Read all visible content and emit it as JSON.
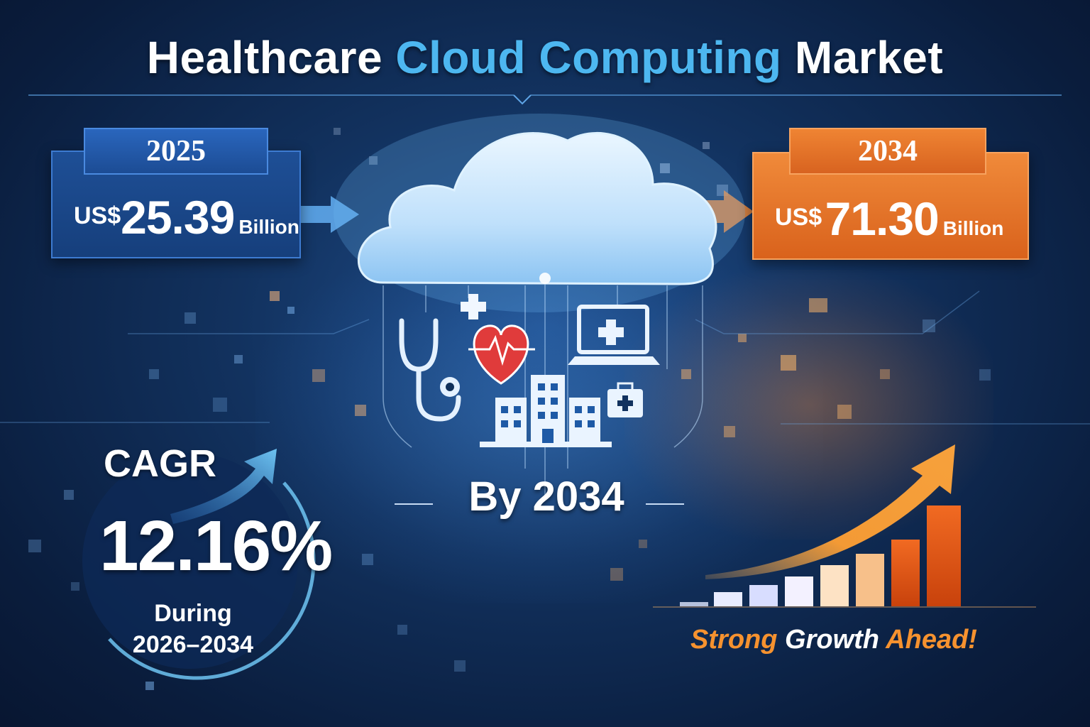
{
  "title": {
    "part1": "Healthcare",
    "part2": "Cloud Computing",
    "part3": "Market"
  },
  "left_box": {
    "year": "2025",
    "currency": "US$",
    "value": "25.39",
    "unit": "Billion"
  },
  "right_box": {
    "year": "2034",
    "currency": "US$",
    "value": "71.30",
    "unit": "Billion"
  },
  "center_label": "By 2034",
  "cagr": {
    "label": "CAGR",
    "value": "12.16%",
    "during_line1": "During",
    "during_line2": "2026–2034"
  },
  "tagline": {
    "word1": "Strong",
    "word2": "Growth",
    "word3": "Ahead!"
  },
  "colors": {
    "background": "#12325f",
    "accent_blue": "#4db7f0",
    "accent_orange": "#f6922f"
  },
  "icons": [
    "cloud-icon",
    "stethoscope-icon",
    "heart-pulse-icon",
    "medical-cross-icon",
    "laptop-medical-icon",
    "hospital-icon",
    "medical-kit-icon",
    "growth-arrow-icon",
    "bar-chart-icon"
  ]
}
